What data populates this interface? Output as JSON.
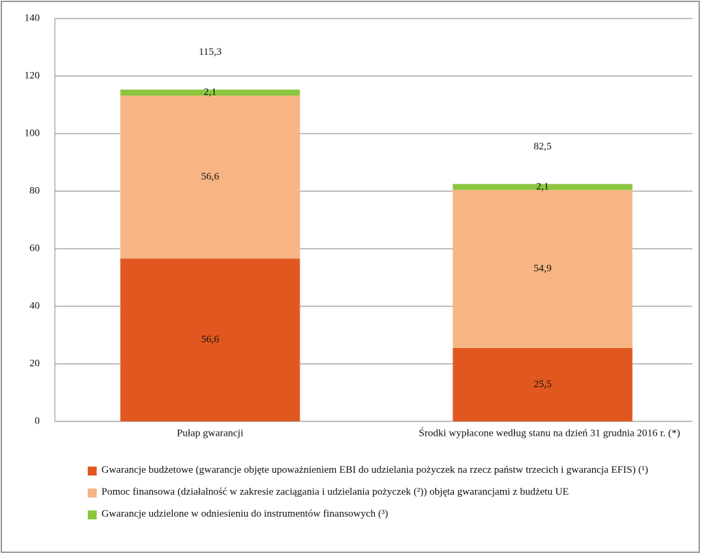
{
  "chart_data": {
    "type": "stacked_bar",
    "categories": [
      "Pułap gwarancji",
      "Środki wypłacone według stanu na dzień 31 grudnia 2016 r. (*)"
    ],
    "series": [
      {
        "name": "Gwarancje budżetowe (gwarancje objęte upoważnieniem EBI do udzielania pożyczek na rzecz państw trzecich i gwarancja EFIS) (¹)",
        "color": "#e0581f",
        "values": [
          56.6,
          25.5
        ],
        "value_labels": [
          "56,6",
          "25,5"
        ]
      },
      {
        "name": "Pomoc finansowa (działalność w zakresie zaciągania i udzielania pożyczek (²)) objęta gwarancjami z budżetu UE",
        "color": "#f6b582",
        "values": [
          56.6,
          54.9
        ],
        "value_labels": [
          "56,6",
          "54,9"
        ]
      },
      {
        "name": "Gwarancje udzielone w odniesieniu do instrumentów finansowych (³)",
        "color": "#8cc63f",
        "values": [
          2.1,
          2.1
        ],
        "value_labels": [
          "2,1",
          "2,1"
        ]
      }
    ],
    "totals": [
      115.3,
      82.5
    ],
    "total_labels": [
      "115,3",
      "82,5"
    ],
    "ylim": [
      0,
      140
    ],
    "yticks": [
      0,
      20,
      40,
      60,
      80,
      100,
      120,
      140
    ],
    "grid": true
  }
}
